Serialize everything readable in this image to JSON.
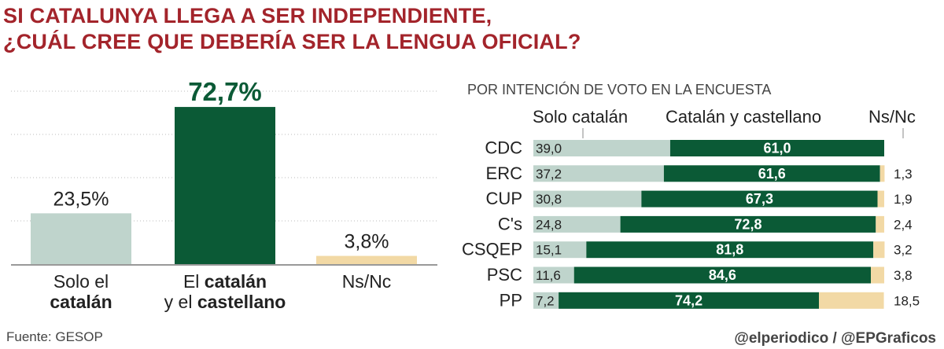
{
  "title": {
    "line1": "SI CATALUNYA LLEGA A SER INDEPENDIENTE,",
    "line2": "¿CUÁL CREE QUE DEBERÍA SER LA LENGUA OFICIAL?"
  },
  "colors": {
    "title": "#a3242b",
    "solo_catalan": "#bfd4cc",
    "catalan_castellano": "#0b5a36",
    "ns_nc": "#f2d9a5",
    "grid": "#bbbbbb",
    "text": "#222222"
  },
  "chart_data": [
    {
      "type": "bar",
      "title": "",
      "categories": [
        {
          "label_lines": [
            [
              {
                "t": "Solo el",
                "b": false
              }
            ],
            [
              {
                "t": "catalán",
                "b": true
              }
            ]
          ]
        },
        {
          "label_lines": [
            [
              {
                "t": "El ",
                "b": false
              },
              {
                "t": "catalán",
                "b": true
              }
            ],
            [
              {
                "t": "y el ",
                "b": false
              },
              {
                "t": "castellano",
                "b": true
              }
            ]
          ]
        },
        {
          "label_lines": [
            [
              {
                "t": "Ns/Nc",
                "b": false
              }
            ]
          ]
        }
      ],
      "values": [
        23.5,
        72.7,
        3.8
      ],
      "value_labels": [
        "23,5%",
        "72,7%",
        "3,8%"
      ],
      "highlight_index": 1,
      "ylim": [
        0,
        80
      ],
      "grid": true
    },
    {
      "type": "bar",
      "stacked": true,
      "orientation": "horizontal",
      "title": "POR INTENCIÓN DE VOTO EN LA ENCUESTA",
      "categories": [
        "CDC",
        "ERC",
        "CUP",
        "C's",
        "CSQEP",
        "PSC",
        "PP"
      ],
      "series": [
        {
          "name": "Solo catalán",
          "values": [
            39.0,
            37.2,
            30.8,
            24.8,
            15.1,
            11.6,
            7.2
          ],
          "labels": [
            "39,0",
            "37,2",
            "30,8",
            "24,8",
            "15,1",
            "11,6",
            "7,2"
          ]
        },
        {
          "name": "Catalán y castellano",
          "values": [
            61.0,
            61.6,
            67.3,
            72.8,
            81.8,
            84.6,
            74.2
          ],
          "labels": [
            "61,0",
            "61,6",
            "67,3",
            "72,8",
            "81,8",
            "84,6",
            "74,2"
          ]
        },
        {
          "name": "Ns/Nc",
          "values": [
            0,
            1.3,
            1.9,
            2.4,
            3.2,
            3.8,
            18.5
          ],
          "labels": [
            "",
            "1,3",
            "1,9",
            "2,4",
            "3,2",
            "3,8",
            "18,5"
          ]
        }
      ],
      "xlim": [
        0,
        100
      ]
    }
  ],
  "footer": {
    "source": "Fuente: GESOP",
    "credit": "@elperiodico / @EPGraficos"
  }
}
